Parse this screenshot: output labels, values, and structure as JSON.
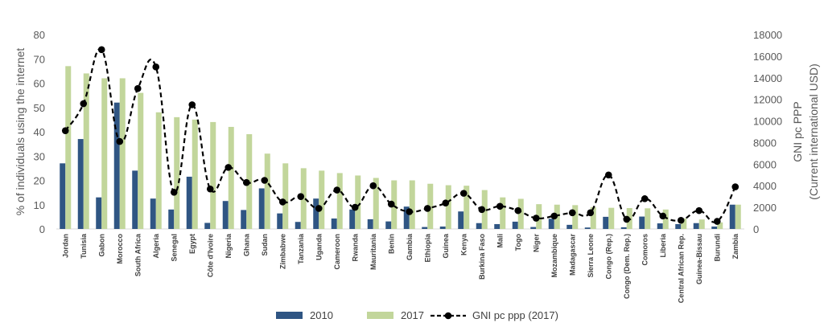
{
  "chart_data": {
    "type": "bar",
    "categories": [
      "Jordan",
      "Tunisia",
      "Gabon",
      "Morocco",
      "South Africa",
      "Algeria",
      "Senegal",
      "Egypt",
      "Côte d'Ivoire",
      "Nigeria",
      "Ghana",
      "Sudan",
      "Zimbabwe",
      "Tanzania",
      "Uganda",
      "Cameroon",
      "Rwanda",
      "Mauritania",
      "Benin",
      "Gambia",
      "Ethiopia",
      "Guinea",
      "Kenya",
      "Burkina Faso",
      "Mali",
      "Togo",
      "Niger",
      "Mozambique",
      "Madagascar",
      "Sierra Leone",
      "Congo (Rep.)",
      "Congo (Dem. Rep.)",
      "Comoros",
      "Liberia",
      "Central African Rep.",
      "Guinea-Bissau",
      "Burundi",
      "Zambia"
    ],
    "series": [
      {
        "name": "2010",
        "kind": "bar",
        "color": "#2f5583",
        "axis": "left",
        "values": [
          27,
          37,
          13,
          52,
          24,
          12.5,
          8,
          21.5,
          2.5,
          11.5,
          7.8,
          16.7,
          6.4,
          2.9,
          12.5,
          4.3,
          8,
          4,
          3.1,
          9.2,
          0.8,
          1,
          7.2,
          2.4,
          2,
          3,
          0.8,
          4.2,
          1.7,
          0.6,
          5,
          0.7,
          5.1,
          2.3,
          2,
          2.4,
          1,
          10
        ]
      },
      {
        "name": "2017",
        "kind": "bar",
        "color": "#c2d69b",
        "axis": "left",
        "values": [
          67,
          64,
          62,
          62,
          56,
          48,
          46,
          45,
          44,
          42,
          39,
          31,
          27,
          25,
          24,
          23,
          22,
          21,
          20,
          20,
          18.6,
          18,
          17.8,
          16,
          13,
          12.4,
          10.2,
          10,
          9.8,
          9,
          8.7,
          8.6,
          8.5,
          8,
          4.3,
          3.9,
          2.7,
          10
        ]
      },
      {
        "name": "GNI pc ppp (2017)",
        "kind": "line",
        "color": "#000000",
        "axis": "right",
        "values": [
          9100,
          11600,
          16600,
          8100,
          13000,
          15000,
          3400,
          11500,
          3700,
          5700,
          4300,
          4500,
          2500,
          3000,
          1900,
          3600,
          2000,
          4000,
          2300,
          1600,
          1900,
          2400,
          3300,
          1800,
          2100,
          1700,
          1000,
          1200,
          1500,
          1500,
          5000,
          900,
          2800,
          1200,
          800,
          1700,
          700,
          3900
        ]
      }
    ],
    "title": "",
    "xlabel": "",
    "ylabel": "% of individuals using the internet",
    "y2label": "GNI pc PPP\n(Current international USD)",
    "ylim": [
      0,
      80
    ],
    "yticks": [
      0,
      10,
      20,
      30,
      40,
      50,
      60,
      70,
      80
    ],
    "y2lim": [
      0,
      18000
    ],
    "y2ticks": [
      0,
      2000,
      4000,
      6000,
      8000,
      10000,
      12000,
      14000,
      16000,
      18000
    ],
    "grid": false,
    "legend": "bottom-center"
  }
}
